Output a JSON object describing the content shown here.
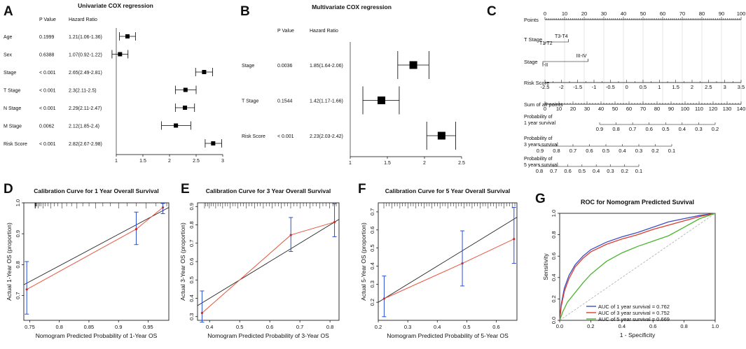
{
  "chart_data": [
    {
      "panel": "A",
      "type": "forest",
      "title": "Univariate COX regression",
      "columns": [
        "P Value",
        "Hazard Ratio"
      ],
      "rows": [
        {
          "label": "Age",
          "p": "0.1999",
          "hr_text": "1.21(1.06-1.36)",
          "hr": 1.21,
          "lo": 1.06,
          "hi": 1.36
        },
        {
          "label": "Sex",
          "p": "0.6388",
          "hr_text": "1.07(0.92-1.22)",
          "hr": 1.07,
          "lo": 0.92,
          "hi": 1.22
        },
        {
          "label": "Stage",
          "p": "< 0.001",
          "hr_text": "2.65(2.49-2.81)",
          "hr": 2.65,
          "lo": 2.49,
          "hi": 2.81
        },
        {
          "label": "T Stage",
          "p": "< 0.001",
          "hr_text": "2.3(2.11-2.5)",
          "hr": 2.3,
          "lo": 2.11,
          "hi": 2.5
        },
        {
          "label": "N Stage",
          "p": "< 0.001",
          "hr_text": "2.29(2.11-2.47)",
          "hr": 2.29,
          "lo": 2.11,
          "hi": 2.47
        },
        {
          "label": "M Stage",
          "p": "0.0062",
          "hr_text": "2.12(1.85-2.4)",
          "hr": 2.12,
          "lo": 1.85,
          "hi": 2.4
        },
        {
          "label": "Risk Score",
          "p": "< 0.001",
          "hr_text": "2.82(2.67-2.98)",
          "hr": 2.82,
          "lo": 2.67,
          "hi": 2.98
        }
      ],
      "xlim": [
        1,
        3
      ],
      "ticks": [
        1,
        1.5,
        2,
        2.5,
        3
      ]
    },
    {
      "panel": "B",
      "type": "forest",
      "title": "Multivariate COX regression",
      "columns": [
        "P Value",
        "Hazard Ratio"
      ],
      "rows": [
        {
          "label": "Stage",
          "p": "0.0036",
          "hr_text": "1.85(1.64-2.06)",
          "hr": 1.85,
          "lo": 1.64,
          "hi": 2.06
        },
        {
          "label": "T Stage",
          "p": "0.1544",
          "hr_text": "1.42(1.17-1.66)",
          "hr": 1.42,
          "lo": 1.17,
          "hi": 1.66
        },
        {
          "label": "Risk Score",
          "p": "< 0.001",
          "hr_text": "2.23(2.03-2.42)",
          "hr": 2.23,
          "lo": 2.03,
          "hi": 2.42
        }
      ],
      "xlim": [
        1,
        2.5
      ],
      "ticks": [
        1,
        1.5,
        2,
        2.5
      ]
    },
    {
      "panel": "C",
      "type": "nomogram",
      "rows": [
        {
          "label": "Points",
          "kind": "scale",
          "min": 0,
          "max": 100,
          "ticks": [
            "0",
            "10",
            "20",
            "30",
            "40",
            "50",
            "60",
            "70",
            "80",
            "90",
            "100"
          ]
        },
        {
          "label": "T Stage",
          "kind": "categorical",
          "segments": [
            {
              "name": "T1-T2",
              "from": 0,
              "to": 2
            },
            {
              "name": "T3-T4",
              "from": 0,
              "to": 12
            }
          ]
        },
        {
          "label": "Stage",
          "kind": "categorical",
          "segments": [
            {
              "name": "I-II",
              "from": 0,
              "to": 0
            },
            {
              "name": "III-IV",
              "from": 0,
              "to": 22
            }
          ]
        },
        {
          "label": "Risk Score",
          "kind": "scale",
          "ticks": [
            "-2.5",
            "-2",
            "-1.5",
            "-1",
            "-0.5",
            "0",
            "0.5",
            "1",
            "1.5",
            "2",
            "2.5",
            "3",
            "3.5"
          ]
        },
        {
          "label": "Sum of all points",
          "kind": "scale",
          "min": 0,
          "max": 140,
          "ticks": [
            "0",
            "10",
            "20",
            "30",
            "40",
            "50",
            "60",
            "70",
            "80",
            "90",
            "100",
            "110",
            "120",
            "130",
            "140"
          ]
        },
        {
          "label": "Probability of",
          "label2": "1 year survival",
          "kind": "prob",
          "ticks": [
            "0.9",
            "0.8",
            "0.7",
            "0.6",
            "0.5",
            "0.4",
            "0.3",
            "0.2"
          ]
        },
        {
          "label": "Probability of",
          "label2": "3 years survival",
          "kind": "prob",
          "ticks": [
            "0.9",
            "0.8",
            "0.7",
            "0.6",
            "0.5",
            "0.4",
            "0.3",
            "0.2",
            "0.1"
          ]
        },
        {
          "label": "Probability of",
          "label2": "5 years survival",
          "kind": "prob",
          "ticks": [
            "0.8",
            "0.7",
            "0.6",
            "0.5",
            "0.4",
            "0.3",
            "0.2",
            "0.1"
          ]
        }
      ]
    },
    {
      "panel": "D",
      "type": "line",
      "title": "Calibration Curve for 1 Year Overall Survival",
      "xlabel": "Nomogram Predicted Probability of 1-Year OS",
      "ylabel": "Actual 1-Year OS (proportion)",
      "xlim": [
        0.74,
        0.985
      ],
      "ylim": [
        0.62,
        1.0
      ],
      "xticks": [
        0.75,
        0.8,
        0.85,
        0.9,
        0.95
      ],
      "yticks": [
        0.7,
        0.8,
        0.9,
        1.0
      ],
      "points": [
        {
          "x": 0.745,
          "y": 0.72,
          "lo": 0.64,
          "hi": 0.81
        },
        {
          "x": 0.93,
          "y": 0.915,
          "lo": 0.865,
          "hi": 0.97
        },
        {
          "x": 0.975,
          "y": 0.985,
          "lo": 0.965,
          "hi": 0.998
        }
      ],
      "ideal": [
        [
          0.74,
          0.735
        ],
        [
          0.985,
          0.985
        ]
      ]
    },
    {
      "panel": "E",
      "type": "line",
      "title": "Calibration Curve for 3 Year Overall Survival",
      "xlabel": "Nomogram Predicted Probability of 3-Year OS",
      "ylabel": "Actual 3-Year OS (proportion)",
      "xlim": [
        0.36,
        0.83
      ],
      "ylim": [
        0.28,
        0.92
      ],
      "xticks": [
        0.4,
        0.5,
        0.6,
        0.7,
        0.8
      ],
      "yticks": [
        0.3,
        0.4,
        0.5,
        0.6,
        0.7,
        0.8,
        0.9
      ],
      "points": [
        {
          "x": 0.375,
          "y": 0.32,
          "lo": 0.27,
          "hi": 0.44
        },
        {
          "x": 0.67,
          "y": 0.745,
          "lo": 0.655,
          "hi": 0.84
        },
        {
          "x": 0.815,
          "y": 0.815,
          "lo": 0.735,
          "hi": 0.915
        }
      ],
      "ideal": [
        [
          0.36,
          0.36
        ],
        [
          0.83,
          0.83
        ]
      ]
    },
    {
      "panel": "F",
      "type": "line",
      "title": "Calibration Curve for 5 Year Overall Survival",
      "xlabel": "Nomogram Predicted Probability of 5-Year OS",
      "ylabel": "Actual 5-Year OS (proportion)",
      "xlim": [
        0.2,
        0.67
      ],
      "ylim": [
        0.1,
        0.75
      ],
      "xticks": [
        0.2,
        0.3,
        0.4,
        0.5,
        0.6
      ],
      "yticks": [
        0.2,
        0.3,
        0.4,
        0.5,
        0.6,
        0.7
      ],
      "points": [
        {
          "x": 0.22,
          "y": 0.22,
          "lo": 0.12,
          "hi": 0.345
        },
        {
          "x": 0.485,
          "y": 0.415,
          "lo": 0.29,
          "hi": 0.595
        },
        {
          "x": 0.66,
          "y": 0.55,
          "lo": 0.415,
          "hi": 0.725
        }
      ],
      "ideal": [
        [
          0.2,
          0.2
        ],
        [
          0.67,
          0.67
        ]
      ]
    },
    {
      "panel": "G",
      "type": "line",
      "title": "ROC for Nomogram Predicted Suvival",
      "xlabel": "1 - Specificity",
      "ylabel": "Sensitivity",
      "xlim": [
        0,
        1
      ],
      "ylim": [
        0,
        1
      ],
      "xticks": [
        0.0,
        0.2,
        0.4,
        0.6,
        0.8,
        1.0
      ],
      "yticks": [
        0.0,
        0.2,
        0.4,
        0.6,
        0.8,
        1.0
      ],
      "series": [
        {
          "name": "AUC of 1 year survival = 0.762",
          "color": "#3b4fc4",
          "x": [
            0,
            0.01,
            0.03,
            0.06,
            0.1,
            0.15,
            0.2,
            0.3,
            0.4,
            0.5,
            0.6,
            0.7,
            0.8,
            0.9,
            1.0
          ],
          "y": [
            0,
            0.15,
            0.3,
            0.42,
            0.52,
            0.6,
            0.66,
            0.73,
            0.78,
            0.82,
            0.87,
            0.92,
            0.95,
            0.98,
            1.0
          ]
        },
        {
          "name": "AUC of 3 year survival = 0.752",
          "color": "#e03b2e",
          "x": [
            0,
            0.01,
            0.03,
            0.06,
            0.1,
            0.15,
            0.2,
            0.3,
            0.4,
            0.5,
            0.6,
            0.7,
            0.8,
            0.9,
            1.0
          ],
          "y": [
            0,
            0.13,
            0.27,
            0.39,
            0.5,
            0.58,
            0.64,
            0.71,
            0.76,
            0.8,
            0.85,
            0.89,
            0.93,
            0.97,
            1.0
          ]
        },
        {
          "name": "AUC of 5 year survival = 0.669",
          "color": "#4ab52f",
          "x": [
            0,
            0.02,
            0.05,
            0.1,
            0.15,
            0.2,
            0.3,
            0.4,
            0.5,
            0.6,
            0.7,
            0.8,
            0.9,
            1.0
          ],
          "y": [
            0,
            0.08,
            0.17,
            0.26,
            0.35,
            0.43,
            0.55,
            0.63,
            0.69,
            0.74,
            0.79,
            0.87,
            0.95,
            1.0
          ]
        }
      ],
      "reference": "diagonal",
      "legend": "bottom-right"
    }
  ]
}
